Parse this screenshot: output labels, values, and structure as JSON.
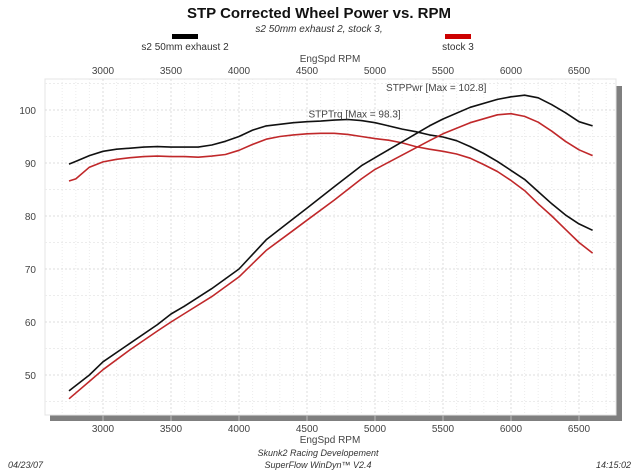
{
  "chart_data": {
    "type": "line",
    "title": "STP Corrected Wheel Power vs. RPM",
    "subtitle": "s2 50mm exhaust 2, stock 3,",
    "xlabel": "EngSpd  RPM",
    "ylabel": "",
    "xlim": [
      2600,
      6800
    ],
    "ylim": [
      42,
      105.5
    ],
    "x_ticks": [
      3000,
      3500,
      4000,
      4500,
      5000,
      5500,
      6000,
      6500
    ],
    "y_ticks": [
      50,
      60,
      70,
      80,
      90,
      100
    ],
    "grid": true,
    "legend": [
      {
        "name": "s2 50mm exhaust 2",
        "color": "#000000",
        "position": "top-left"
      },
      {
        "name": "stock 3",
        "color": "#cc0000",
        "position": "top-right"
      }
    ],
    "annotations": [
      {
        "text": "STPPwr [Max = 102.8]",
        "x": 5450,
        "y": 103.6
      },
      {
        "text": "STPTrq [Max = 98.3]",
        "x": 4850,
        "y": 98.6
      }
    ],
    "series": [
      {
        "name": "s2 50mm exhaust 2 STPTrq",
        "color": "#111111",
        "x": [
          2750,
          2800,
          2900,
          3000,
          3100,
          3200,
          3300,
          3400,
          3500,
          3600,
          3700,
          3800,
          3900,
          4000,
          4100,
          4200,
          4300,
          4400,
          4500,
          4600,
          4700,
          4800,
          4900,
          5000,
          5100,
          5200,
          5300,
          5400,
          5500,
          5600,
          5700,
          5800,
          5900,
          6000,
          6100,
          6200,
          6300,
          6400,
          6500,
          6600
        ],
        "y": [
          89.8,
          90.3,
          91.4,
          92.2,
          92.6,
          92.8,
          93.0,
          93.1,
          93.0,
          93.0,
          93.0,
          93.4,
          94.1,
          95.0,
          96.2,
          97.0,
          97.3,
          97.6,
          97.8,
          97.9,
          98.1,
          98.2,
          98.0,
          97.6,
          97.0,
          96.4,
          95.9,
          95.3,
          94.9,
          94.2,
          93.1,
          91.8,
          90.3,
          88.6,
          86.9,
          84.6,
          82.3,
          80.2,
          78.5,
          77.3
        ]
      },
      {
        "name": "stock 3 STPTrq",
        "color": "#c0282a",
        "x": [
          2750,
          2800,
          2900,
          3000,
          3100,
          3200,
          3300,
          3400,
          3500,
          3600,
          3700,
          3800,
          3900,
          4000,
          4100,
          4200,
          4300,
          4400,
          4500,
          4600,
          4700,
          4800,
          4900,
          5000,
          5100,
          5200,
          5300,
          5400,
          5500,
          5600,
          5700,
          5800,
          5900,
          6000,
          6100,
          6200,
          6300,
          6400,
          6500,
          6600
        ],
        "y": [
          86.6,
          87.0,
          89.2,
          90.2,
          90.7,
          91.0,
          91.2,
          91.3,
          91.2,
          91.2,
          91.1,
          91.3,
          91.6,
          92.4,
          93.5,
          94.5,
          95.0,
          95.3,
          95.5,
          95.6,
          95.6,
          95.4,
          95.0,
          94.6,
          94.3,
          93.8,
          93.1,
          92.6,
          92.2,
          91.7,
          90.9,
          89.7,
          88.4,
          86.7,
          84.8,
          82.3,
          80.0,
          77.5,
          75.0,
          73.0
        ]
      },
      {
        "name": "s2 50mm exhaust 2 STPPwr",
        "color": "#111111",
        "x": [
          2750,
          2900,
          3000,
          3200,
          3400,
          3500,
          3600,
          3800,
          4000,
          4200,
          4400,
          4500,
          4700,
          4900,
          5000,
          5200,
          5400,
          5500,
          5700,
          5900,
          6000,
          6100,
          6200,
          6300,
          6400,
          6500,
          6600
        ],
        "y": [
          47.0,
          50.0,
          52.5,
          56.0,
          59.5,
          61.5,
          63.0,
          66.3,
          70.0,
          75.5,
          79.5,
          81.5,
          85.5,
          89.5,
          91.0,
          94.0,
          97.0,
          98.3,
          100.5,
          102.0,
          102.5,
          102.8,
          102.3,
          101.0,
          99.5,
          97.8,
          97.0
        ]
      },
      {
        "name": "stock 3 STPPwr",
        "color": "#c0282a",
        "x": [
          2750,
          2900,
          3000,
          3200,
          3400,
          3500,
          3600,
          3800,
          4000,
          4200,
          4400,
          4500,
          4700,
          4900,
          5000,
          5200,
          5400,
          5500,
          5700,
          5900,
          6000,
          6100,
          6200,
          6300,
          6400,
          6500,
          6600
        ],
        "y": [
          45.5,
          48.8,
          51.0,
          54.8,
          58.3,
          60.0,
          61.6,
          64.8,
          68.5,
          73.5,
          77.3,
          79.2,
          83.0,
          87.0,
          88.8,
          91.5,
          94.2,
          95.5,
          97.6,
          99.1,
          99.3,
          98.8,
          97.7,
          96.0,
          94.1,
          92.5,
          91.4
        ]
      }
    ]
  },
  "footer": {
    "date": "04/23/07",
    "company": "Skunk2 Racing Developement",
    "software": "SuperFlow WinDyn™ V2.4",
    "time": "14:15:02"
  }
}
